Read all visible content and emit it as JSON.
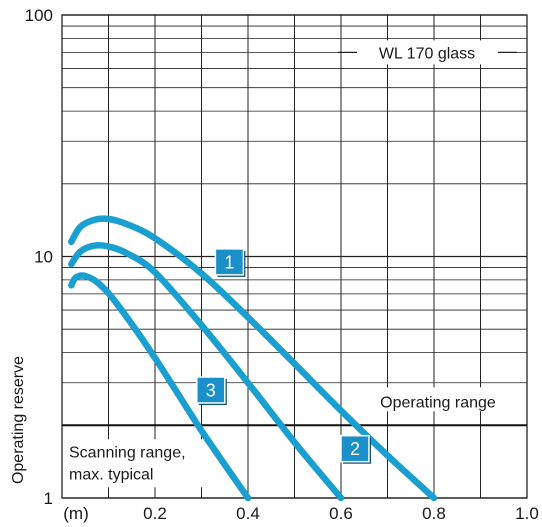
{
  "chart_data": {
    "type": "line",
    "title": "",
    "xlabel": "(m)",
    "ylabel": "Operating reserve",
    "x_scale": "linear",
    "y_scale": "log",
    "xlim": [
      0,
      1.0
    ],
    "ylim": [
      1,
      100
    ],
    "x_ticks": [
      "0.2",
      "0.4",
      "0.6",
      "0.8",
      "1.0"
    ],
    "y_ticks": [
      "1",
      "10",
      "100"
    ],
    "grid": true,
    "legend_text": "WL 170 glass",
    "threshold": 2,
    "annotations": {
      "above_threshold": "Operating range",
      "below_threshold_line1": "Scanning range,",
      "below_threshold_line2": "max. typical"
    },
    "line_color": "#1a9fd0",
    "badge_color": "#1b8fc9",
    "series": [
      {
        "name": "1",
        "x": [
          0.02,
          0.04,
          0.07,
          0.1,
          0.14,
          0.2,
          0.3,
          0.4,
          0.5,
          0.6,
          0.7,
          0.8
        ],
        "y": [
          11.5,
          13.3,
          14.2,
          14.3,
          13.6,
          11.9,
          8.5,
          5.6,
          3.6,
          2.3,
          1.5,
          1.0
        ]
      },
      {
        "name": "2",
        "x": [
          0.02,
          0.04,
          0.07,
          0.1,
          0.14,
          0.2,
          0.3,
          0.4,
          0.5,
          0.6
        ],
        "y": [
          9.3,
          10.5,
          11.1,
          11.0,
          10.3,
          8.6,
          5.2,
          3.0,
          1.7,
          1.0
        ]
      },
      {
        "name": "3",
        "x": [
          0.02,
          0.03,
          0.05,
          0.08,
          0.12,
          0.2,
          0.3,
          0.4
        ],
        "y": [
          7.6,
          8.2,
          8.3,
          7.7,
          6.3,
          3.8,
          1.9,
          1.0
        ]
      }
    ],
    "badges": [
      {
        "series": "1",
        "x": 0.36,
        "y": 9.5
      },
      {
        "series": "2",
        "x": 0.63,
        "y": 1.6
      },
      {
        "series": "3",
        "x": 0.32,
        "y": 2.8
      }
    ]
  }
}
